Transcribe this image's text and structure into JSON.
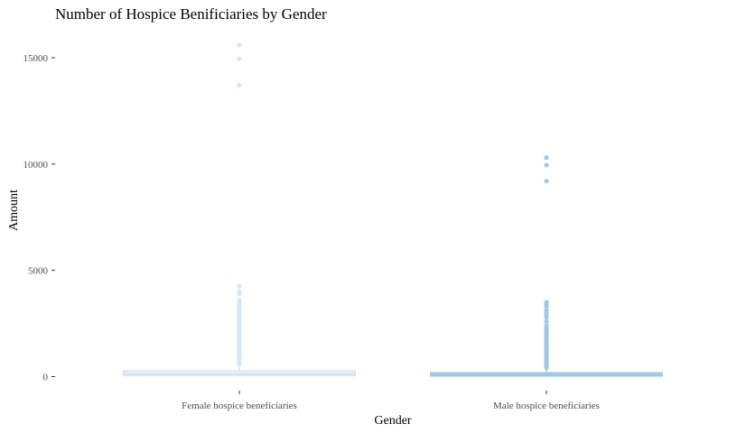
{
  "chart_data": {
    "type": "box",
    "title": "Number of Hospice Benificiaries by Gender",
    "xlabel": "Gender",
    "ylabel": "Amount",
    "ylim": [
      -500,
      16000
    ],
    "yticks": [
      0,
      5000,
      10000,
      15000
    ],
    "ytick_labels": [
      "0",
      "5000",
      "10000",
      "15000"
    ],
    "grid": false,
    "legend": "none",
    "categories": [
      "Female hospice beneficiaries",
      "Male hospice beneficiaries"
    ],
    "boxes": [
      {
        "category": "Female hospice beneficiaries",
        "color": "#d6e6f4",
        "q1": 60,
        "median": 130,
        "q3": 260,
        "whisker_low": 0,
        "whisker_high": 560,
        "outliers": [
          600,
          700,
          800,
          900,
          1000,
          1100,
          1200,
          1300,
          1400,
          1500,
          1600,
          1700,
          1800,
          1900,
          2000,
          2100,
          2200,
          2300,
          2400,
          2500,
          2600,
          2700,
          2800,
          2900,
          3000,
          3100,
          3200,
          3300,
          3400,
          3500,
          3600,
          3900,
          4000,
          4250,
          13700,
          14950,
          15600
        ]
      },
      {
        "category": "Male hospice beneficiaries",
        "color": "#9ecae1",
        "q1": 40,
        "median": 90,
        "q3": 170,
        "whisker_low": 0,
        "whisker_high": 380,
        "outliers": [
          420,
          500,
          600,
          700,
          800,
          900,
          1000,
          1100,
          1200,
          1300,
          1400,
          1500,
          1600,
          1700,
          1800,
          1900,
          2000,
          2100,
          2200,
          2300,
          2400,
          2600,
          2800,
          2900,
          3000,
          3100,
          3300,
          3400,
          3500,
          9200,
          9950,
          10300
        ]
      }
    ]
  }
}
